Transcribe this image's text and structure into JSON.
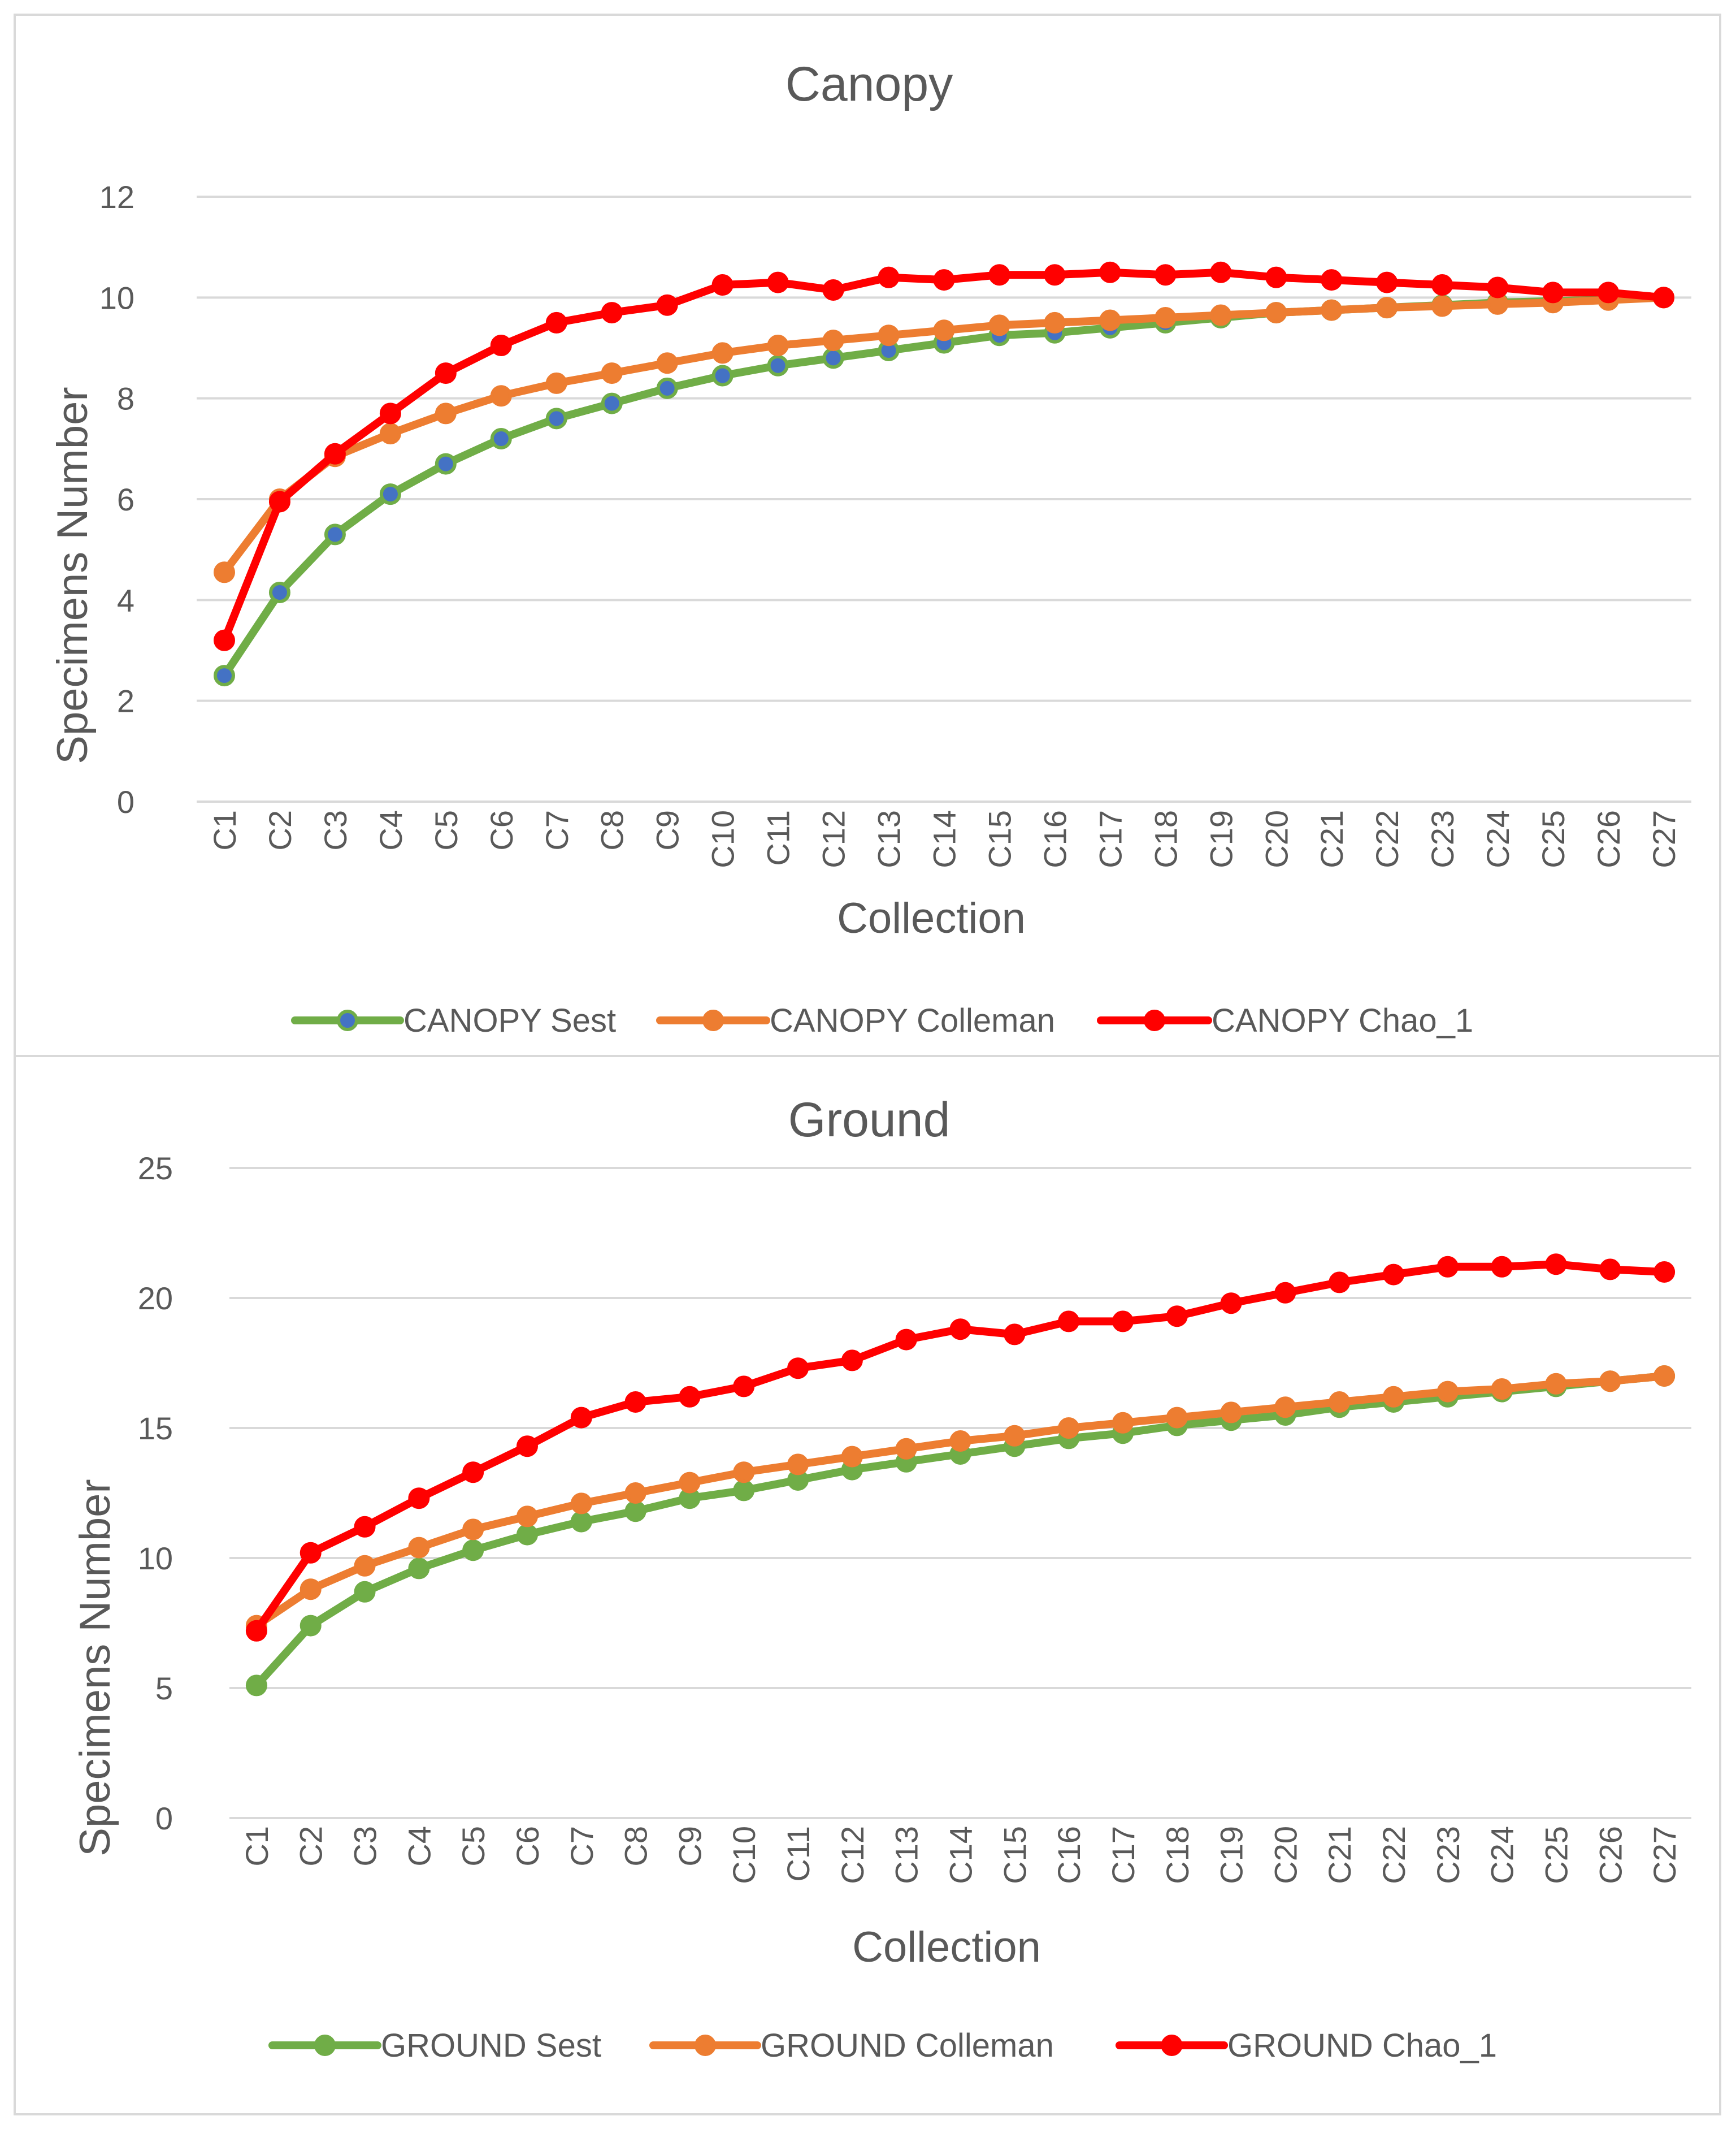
{
  "chart_data": [
    {
      "type": "line",
      "title": "Canopy",
      "xlabel": "Collection",
      "ylabel": "Specimens Number",
      "ylim": [
        0,
        12
      ],
      "yticks": [
        0,
        2,
        4,
        6,
        8,
        10,
        12
      ],
      "grid": true,
      "legend_position": "bottom",
      "categories": [
        "C1",
        "C2",
        "C3",
        "C4",
        "C5",
        "C6",
        "C7",
        "C8",
        "C9",
        "C10",
        "C11",
        "C12",
        "C13",
        "C14",
        "C15",
        "C16",
        "C17",
        "C18",
        "C19",
        "C20",
        "C21",
        "C22",
        "C23",
        "C24",
        "C25",
        "C26",
        "C27"
      ],
      "series": [
        {
          "name": "CANOPY Sest",
          "color": "#70ad47",
          "marker_color": "#4472c4",
          "values": [
            2.5,
            4.15,
            5.3,
            6.1,
            6.7,
            7.2,
            7.6,
            7.9,
            8.2,
            8.45,
            8.65,
            8.8,
            8.95,
            9.1,
            9.25,
            9.3,
            9.4,
            9.5,
            9.6,
            9.7,
            9.75,
            9.8,
            9.85,
            9.9,
            9.93,
            9.96,
            10.0
          ]
        },
        {
          "name": "CANOPY Colleman",
          "color": "#ed7d31",
          "marker_color": "#ed7d31",
          "values": [
            4.55,
            6.0,
            6.85,
            7.3,
            7.7,
            8.05,
            8.3,
            8.5,
            8.7,
            8.9,
            9.05,
            9.15,
            9.25,
            9.35,
            9.45,
            9.5,
            9.55,
            9.6,
            9.65,
            9.7,
            9.75,
            9.8,
            9.83,
            9.87,
            9.9,
            9.95,
            10.0
          ]
        },
        {
          "name": "CANOPY Chao_1",
          "color": "#ff0000",
          "marker_color": "#ff0000",
          "values": [
            3.2,
            5.95,
            6.9,
            7.7,
            8.5,
            9.05,
            9.5,
            9.7,
            9.85,
            10.25,
            10.3,
            10.15,
            10.4,
            10.35,
            10.45,
            10.45,
            10.5,
            10.45,
            10.5,
            10.4,
            10.35,
            10.3,
            10.25,
            10.2,
            10.1,
            10.1,
            10.0
          ]
        }
      ]
    },
    {
      "type": "line",
      "title": "Ground",
      "xlabel": "Collection",
      "ylabel": "Specimens Number",
      "ylim": [
        0,
        25
      ],
      "yticks": [
        0,
        5,
        10,
        15,
        20,
        25
      ],
      "grid": true,
      "legend_position": "bottom",
      "categories": [
        "C1",
        "C2",
        "C3",
        "C4",
        "C5",
        "C6",
        "C7",
        "C8",
        "C9",
        "C10",
        "C11",
        "C12",
        "C13",
        "C14",
        "C15",
        "C16",
        "C17",
        "C18",
        "C19",
        "C20",
        "C21",
        "C22",
        "C23",
        "C24",
        "C25",
        "C26",
        "C27"
      ],
      "series": [
        {
          "name": "GROUND Sest",
          "color": "#70ad47",
          "marker_color": "#70ad47",
          "values": [
            5.1,
            7.4,
            8.7,
            9.6,
            10.3,
            10.9,
            11.4,
            11.8,
            12.3,
            12.6,
            13.0,
            13.4,
            13.7,
            14.0,
            14.3,
            14.6,
            14.8,
            15.1,
            15.3,
            15.5,
            15.8,
            16.0,
            16.2,
            16.4,
            16.6,
            16.8,
            17.0
          ]
        },
        {
          "name": "GROUND Colleman",
          "color": "#ed7d31",
          "marker_color": "#ed7d31",
          "values": [
            7.4,
            8.8,
            9.7,
            10.4,
            11.1,
            11.6,
            12.1,
            12.5,
            12.9,
            13.3,
            13.6,
            13.9,
            14.2,
            14.5,
            14.7,
            15.0,
            15.2,
            15.4,
            15.6,
            15.8,
            16.0,
            16.2,
            16.4,
            16.5,
            16.7,
            16.8,
            17.0
          ]
        },
        {
          "name": "GROUND Chao_1",
          "color": "#ff0000",
          "marker_color": "#ff0000",
          "values": [
            7.2,
            10.2,
            11.2,
            12.3,
            13.3,
            14.3,
            15.4,
            16.0,
            16.2,
            16.6,
            17.3,
            17.6,
            18.4,
            18.8,
            18.6,
            19.1,
            19.1,
            19.3,
            19.8,
            20.2,
            20.6,
            20.9,
            21.2,
            21.2,
            21.3,
            21.1,
            21.0
          ]
        }
      ]
    }
  ]
}
